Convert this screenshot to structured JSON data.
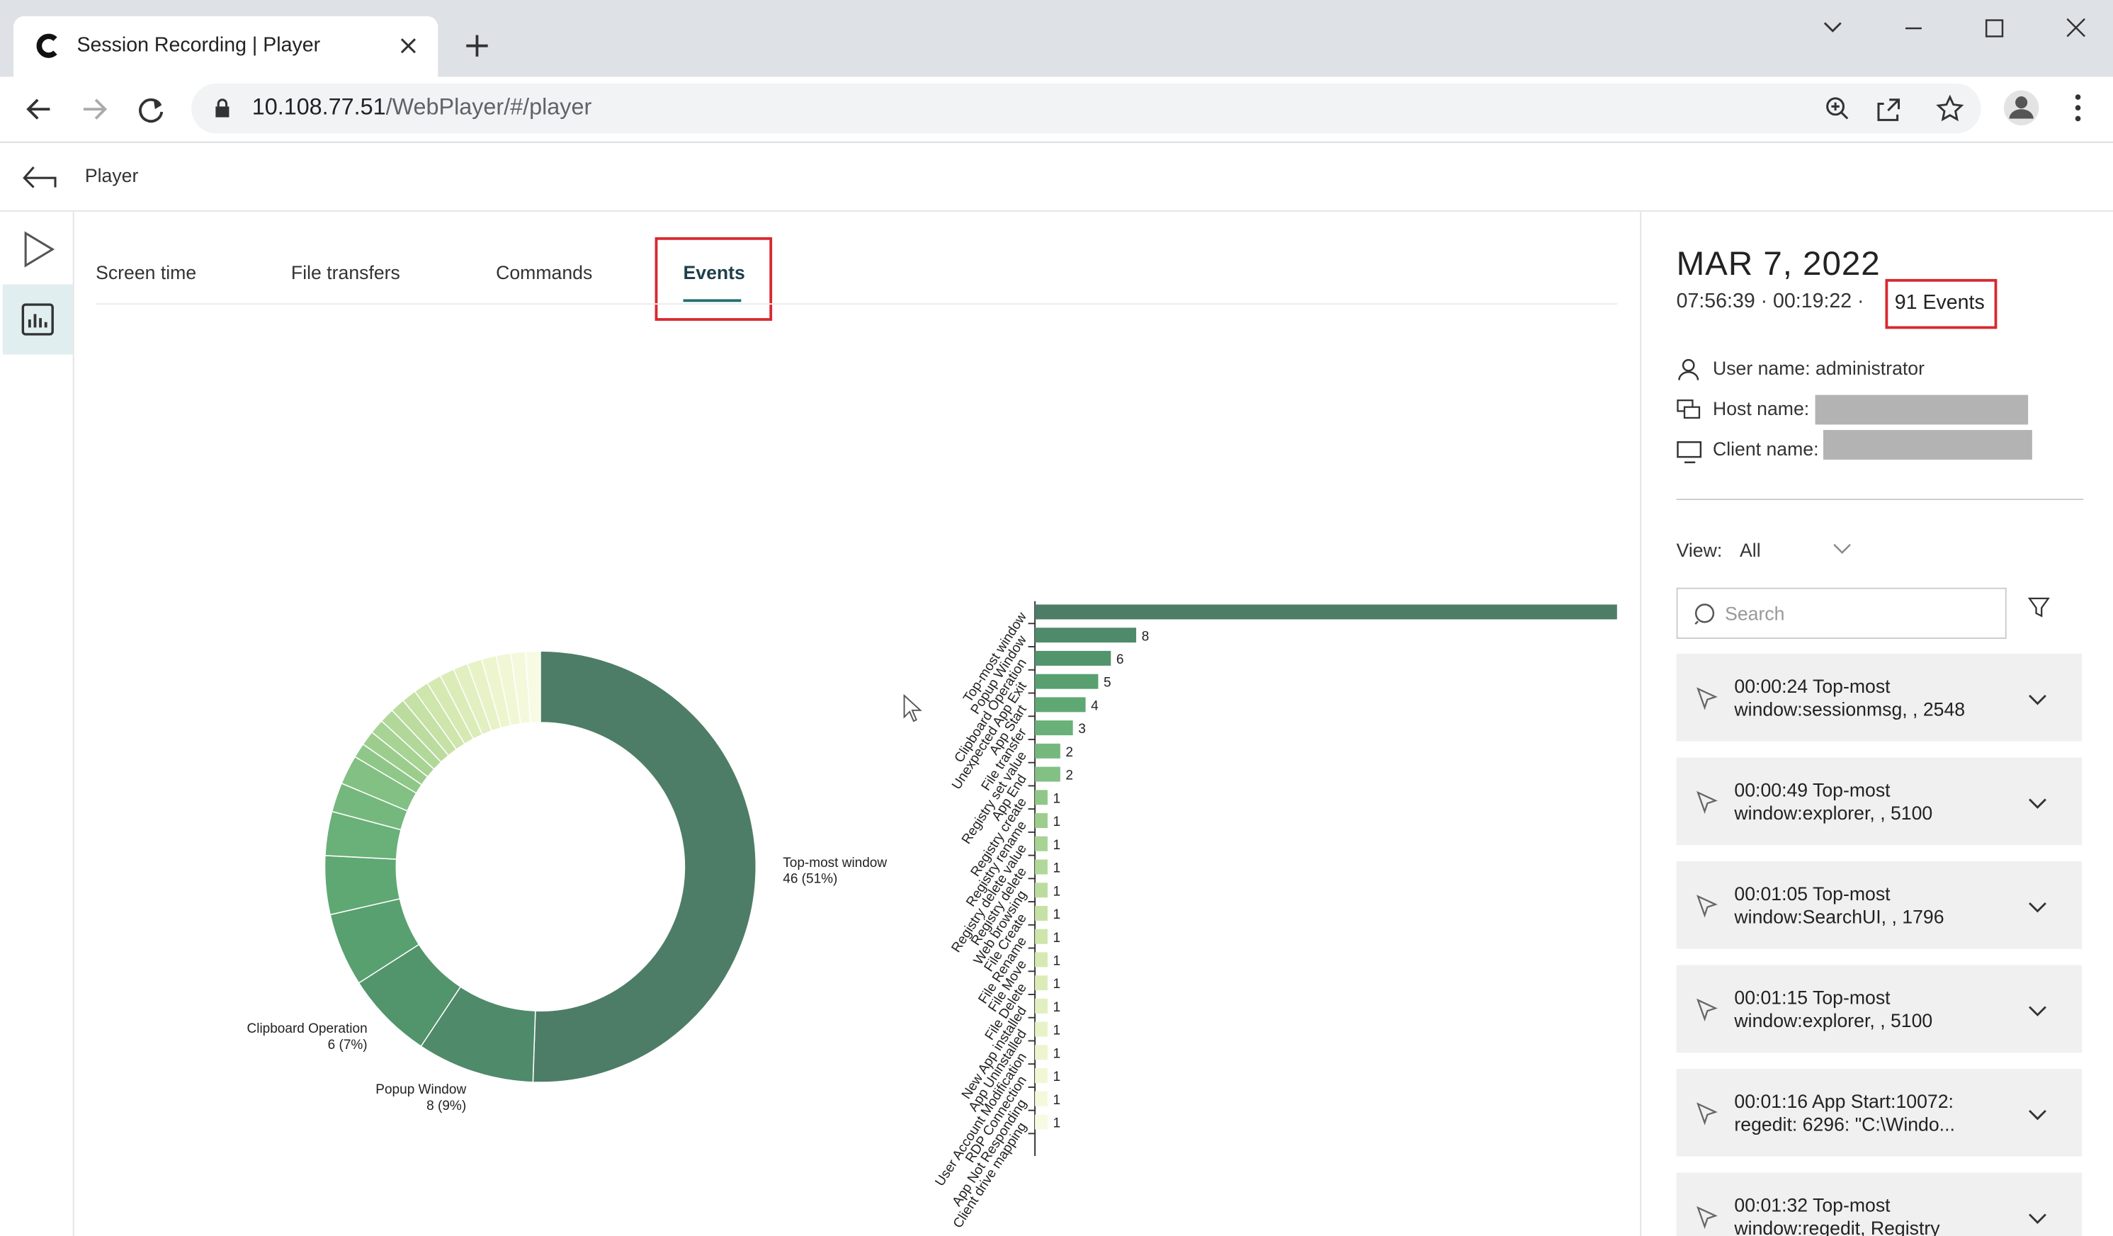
{
  "browser": {
    "tab_title": "Session Recording | Player",
    "url_host": "10.108.77.51",
    "url_path": "/WebPlayer/#/player"
  },
  "header": {
    "title": "Player"
  },
  "tabs": [
    "Screen time",
    "File transfers",
    "Commands",
    "Events"
  ],
  "chart_data": [
    {
      "type": "pie",
      "categories": [
        "Top-most window",
        "Popup Window",
        "Clipboard Operation",
        null,
        null,
        null,
        null,
        null,
        null,
        null,
        null,
        null,
        null,
        null,
        null,
        null,
        null,
        null,
        null,
        null,
        null,
        null,
        null
      ],
      "values": [
        46,
        8,
        6,
        5,
        4,
        3,
        2,
        2,
        1,
        1,
        1,
        1,
        1,
        1,
        1,
        1,
        1,
        1,
        1,
        1,
        1,
        1,
        1
      ],
      "value_labels": [
        "46 (51%)",
        "8 (9%)",
        "6 (7%)",
        null,
        null,
        null,
        null,
        null,
        null,
        null,
        null,
        null,
        null,
        null,
        null,
        null,
        null,
        null,
        null,
        null,
        null,
        null,
        null
      ],
      "colors": [
        "#4e7d67",
        "#4f8a6a",
        "#52946c",
        "#58a06f",
        "#5fa873",
        "#69b079",
        "#75b87e",
        "#82c083",
        "#8fc788",
        "#9ccd8d",
        "#a7d393",
        "#b2d899",
        "#bcdc9f",
        "#c5e1a5",
        "#cee5ab",
        "#d6e9b2",
        "#dcecb9",
        "#e2efc0",
        "#e8f2c7",
        "#edf5ce",
        "#f1f7d5",
        "#f5f9dc",
        "#f8fbe3"
      ]
    },
    {
      "type": "bar",
      "orientation": "horizontal",
      "categories": [
        "Top-most window",
        "Popup Window",
        "Clipboard Operation",
        "Unexpected App Exit",
        "App Start",
        "File transfer",
        "Registry set value",
        "App End",
        "Registry create",
        "Registry rename",
        "Registry delete value",
        "Registry delete",
        "Web browsing",
        "File Create",
        "File Rename",
        "File Move",
        "File Delete",
        "New App installed",
        "App Uninstalled",
        "User Account Modification",
        "RDP Connection",
        "App Not Responding",
        "Client drive mapping"
      ],
      "values": [
        46,
        8,
        6,
        5,
        4,
        3,
        2,
        2,
        1,
        1,
        1,
        1,
        1,
        1,
        1,
        1,
        1,
        1,
        1,
        1,
        1,
        1,
        1
      ],
      "xlim": [
        0,
        46
      ],
      "colors": [
        "#4e7d67",
        "#4f8a6a",
        "#52946c",
        "#58a06f",
        "#5fa873",
        "#69b079",
        "#75b87e",
        "#82c083",
        "#8fc788",
        "#9ccd8d",
        "#a7d393",
        "#b2d899",
        "#bcdc9f",
        "#c5e1a5",
        "#cee5ab",
        "#d6e9b2",
        "#dcecb9",
        "#e2efc0",
        "#e8f2c7",
        "#edf5ce",
        "#f1f7d5",
        "#f5f9dc",
        "#f8fbe3"
      ]
    }
  ],
  "session": {
    "date": "MAR 7, 2022",
    "times": "07:56:39 · 00:19:22 ·",
    "events_count": "91 Events",
    "user_name": "User name: administrator",
    "host_name": "Host name:",
    "client_name": "Client name:"
  },
  "filter": {
    "view_label": "View:",
    "view_value": "All",
    "search_placeholder": "Search"
  },
  "events": [
    [
      "00:00:24 Top-most",
      "window:sessionmsg, , 2548"
    ],
    [
      "00:00:49 Top-most",
      "window:explorer, , 5100"
    ],
    [
      "00:01:05 Top-most",
      "window:SearchUI, , 1796"
    ],
    [
      "00:01:15 Top-most",
      "window:explorer, , 5100"
    ],
    [
      "00:01:16 App Start:10072:",
      "regedit: 6296: \"C:\\Windo..."
    ],
    [
      "00:01:32 Top-most",
      "window:regedit, Registry"
    ]
  ]
}
